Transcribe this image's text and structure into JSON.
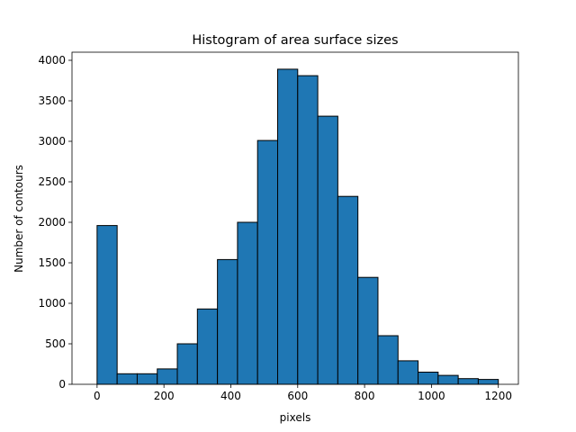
{
  "chart_data": {
    "type": "bar",
    "title": "Histogram of area surface sizes",
    "xlabel": "pixels",
    "ylabel": "Number of contours",
    "xlim": [
      -75,
      1260
    ],
    "ylim": [
      0,
      4100
    ],
    "xticks": [
      0,
      200,
      400,
      600,
      800,
      1000,
      1200
    ],
    "yticks": [
      0,
      500,
      1000,
      1500,
      2000,
      2500,
      3000,
      3500,
      4000
    ],
    "bin_edges": [
      0,
      60,
      120,
      180,
      240,
      300,
      360,
      420,
      480,
      540,
      600,
      660,
      720,
      780,
      840,
      900,
      960,
      1020,
      1080,
      1140,
      1200
    ],
    "values": [
      1960,
      130,
      130,
      190,
      500,
      930,
      1540,
      2000,
      3010,
      3890,
      3810,
      3310,
      2320,
      1320,
      600,
      290,
      150,
      110,
      70,
      60
    ],
    "grid": false,
    "legend": "none",
    "colors": {
      "bar": "#1f77b4",
      "edge": "#000000"
    }
  }
}
